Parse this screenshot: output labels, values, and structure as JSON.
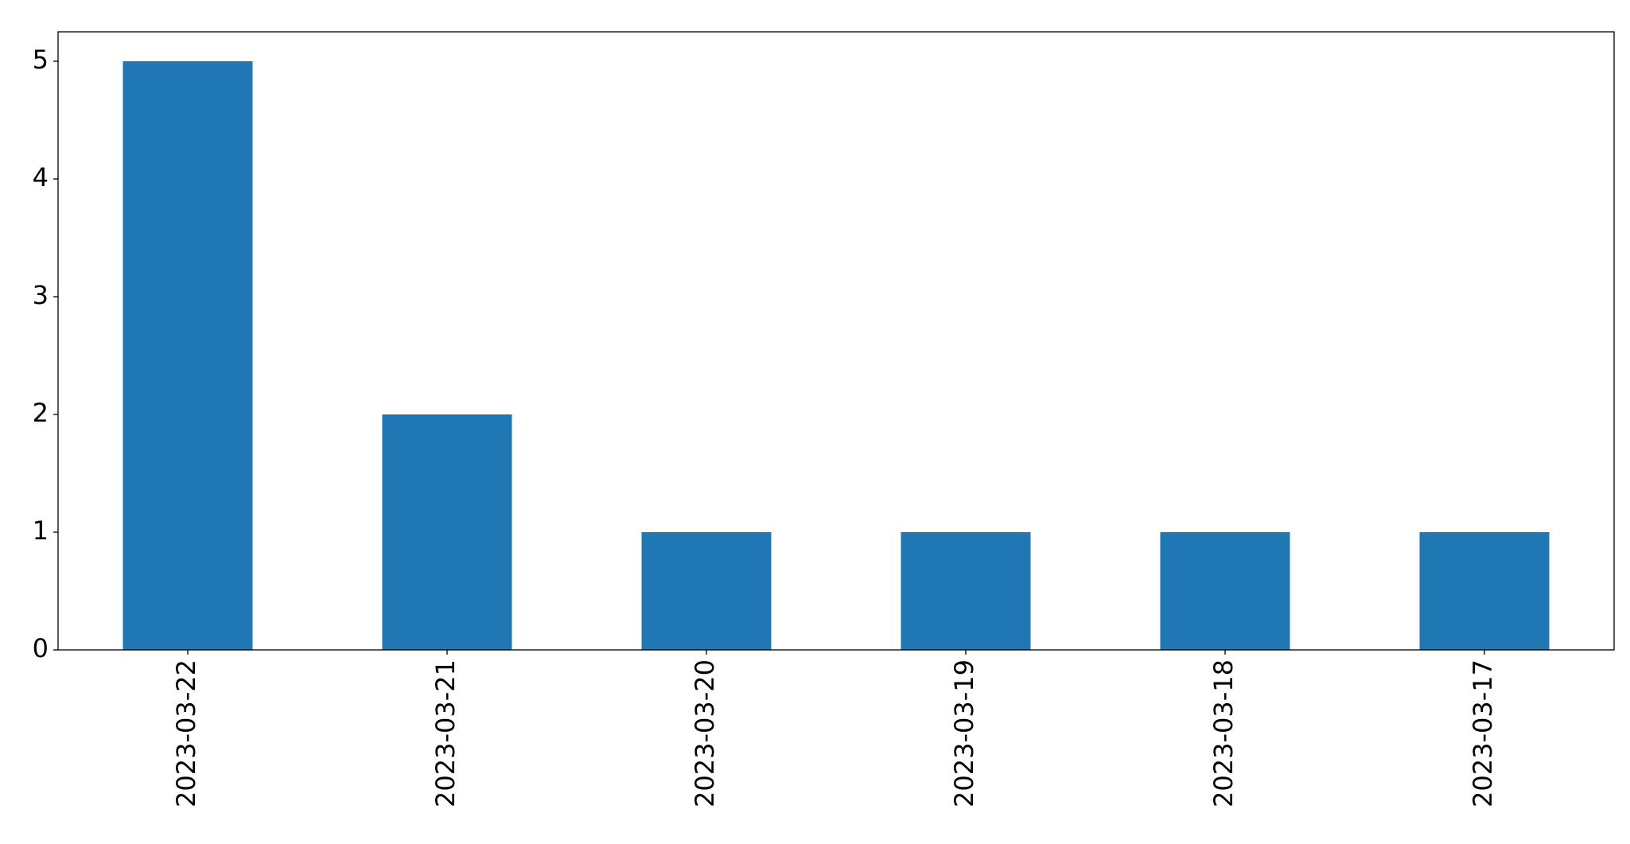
{
  "chart_data": {
    "type": "bar",
    "categories": [
      "2023-03-22",
      "2023-03-21",
      "2023-03-20",
      "2023-03-19",
      "2023-03-18",
      "2023-03-17"
    ],
    "values": [
      5,
      2,
      1,
      1,
      1,
      1
    ],
    "color": "#1f77b4",
    "ylim": [
      0,
      5.25
    ],
    "yticks": [
      0,
      1,
      2,
      3,
      4,
      5
    ],
    "grid": false
  }
}
